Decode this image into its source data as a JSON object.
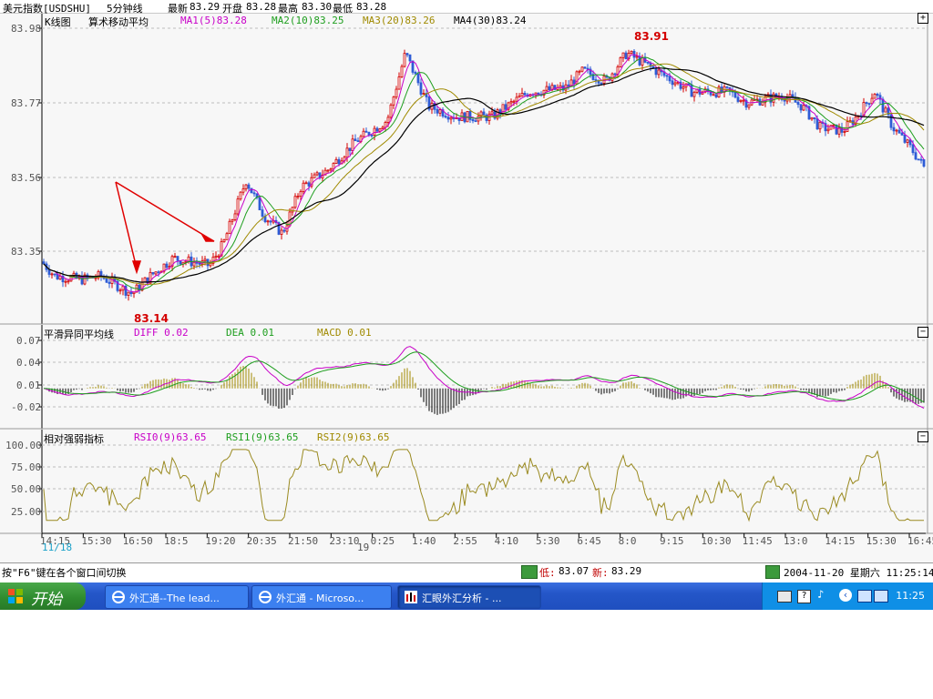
{
  "header": {
    "instrument": "美元指数[USDSHU]",
    "period": "5分钟线",
    "latest_label": "最新",
    "latest": "83.29",
    "open_label": "开盘",
    "open": "83.28",
    "high_label": "最高",
    "high": "83.30",
    "low_label": "最低",
    "low": "83.28"
  },
  "main_panel": {
    "title": "K线图",
    "indicator_name": "算术移动平均",
    "ma1": "MA1(5)83.28",
    "ma2": "MA2(10)83.25",
    "ma3": "MA3(20)83.26",
    "ma4": "MA4(30)83.24",
    "y_ticks": [
      "83.98",
      "83.77",
      "83.56",
      "83.35"
    ],
    "max_label": "83.91",
    "min_label": "83.14",
    "expand_symbol": "+"
  },
  "macd_panel": {
    "title": "平滑异同平均线",
    "diff": "DIFF 0.02",
    "dea": "DEA 0.01",
    "macd": "MACD 0.01",
    "y_ticks": [
      "0.07",
      "0.04",
      "0.01",
      "-0.02"
    ],
    "collapse_symbol": "−"
  },
  "rsi_panel": {
    "title": "相对强弱指标",
    "rsi0": "RSI0(9)63.65",
    "rsi1": "RSI1(9)63.65",
    "rsi2": "RSI2(9)63.65",
    "y_ticks": [
      "100.00",
      "75.00",
      "50.00",
      "25.00"
    ],
    "collapse_symbol": "−"
  },
  "x_axis": {
    "ticks": [
      "14:15",
      "15:30",
      "16:50",
      "18:5",
      "19:20",
      "20:35",
      "21:50",
      "23:10",
      "0:25",
      "1:40",
      "2:55",
      "4:10",
      "5:30",
      "6:45",
      "8:0",
      "9:15",
      "10:30",
      "11:45",
      "13:0",
      "14:15",
      "15:30",
      "16:45"
    ],
    "date_start": "11/18",
    "date_mid": "19"
  },
  "status": {
    "hint": "按\"F6\"键在各个窗口间切换",
    "low_label": "低:",
    "low": "83.07",
    "new_label": "新:",
    "new": "83.29",
    "datetime": "2004-11-20 星期六 11:25:14"
  },
  "taskbar": {
    "start": "开始",
    "buttons": [
      "外汇通--The lead...",
      "外汇通 - Microso...",
      "汇眼外汇分析 - ..."
    ],
    "clock": "11:25"
  },
  "colors": {
    "up": "#d40000",
    "down": "#2e5cd6",
    "ma1": "#c800c8",
    "ma2": "#1e9e1e",
    "ma3": "#a08a00",
    "ma4": "#000000",
    "diff": "#c800c8",
    "dea": "#1e9e1e",
    "rsi": "#9a8a20",
    "grid": "#bdbdbd"
  }
}
